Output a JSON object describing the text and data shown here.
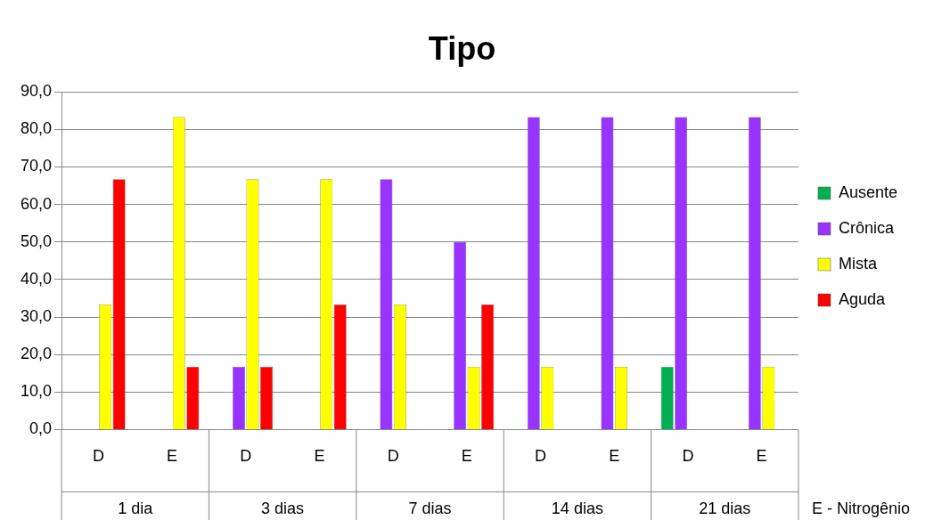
{
  "chart_data": {
    "type": "bar",
    "title": "Tipo",
    "categories": [
      "D",
      "E",
      "D",
      "E",
      "D",
      "E",
      "D",
      "E",
      "D",
      "E"
    ],
    "series": [
      {
        "name": "Ausente",
        "color": "#00b050",
        "values": [
          0,
          0,
          0,
          0,
          0,
          0,
          0,
          0,
          16.7,
          0
        ]
      },
      {
        "name": "Crônica",
        "color": "#9933ff",
        "values": [
          0,
          0,
          16.7,
          0,
          66.7,
          50,
          83.3,
          83.3,
          83.3,
          83.3
        ]
      },
      {
        "name": "Mista",
        "color": "#ffff00",
        "values": [
          33.3,
          83.3,
          66.7,
          66.7,
          33.3,
          16.7,
          16.7,
          16.7,
          0,
          16.7
        ]
      },
      {
        "name": "Aguda",
        "color": "#ff0000",
        "values": [
          66.7,
          16.7,
          16.7,
          33.3,
          0,
          33.3,
          0,
          0,
          0,
          0
        ]
      }
    ],
    "ylim": [
      0,
      90
    ],
    "yticks": [
      {
        "value": 0,
        "label": "0,0"
      },
      {
        "value": 10,
        "label": "10,0"
      },
      {
        "value": 20,
        "label": "20,0"
      },
      {
        "value": 30,
        "label": "30,0"
      },
      {
        "value": 40,
        "label": "40,0"
      },
      {
        "value": 50,
        "label": "50,0"
      },
      {
        "value": 60,
        "label": "60,0"
      },
      {
        "value": 70,
        "label": "70,0"
      },
      {
        "value": 80,
        "label": "80,0"
      },
      {
        "value": 90,
        "label": "90,0"
      }
    ],
    "grid": "y",
    "legend": "right",
    "annotations": [
      "1 dia",
      "3 dias",
      "7 dias",
      "14 dias",
      "21 dias",
      "E - Nitrogênio"
    ]
  }
}
